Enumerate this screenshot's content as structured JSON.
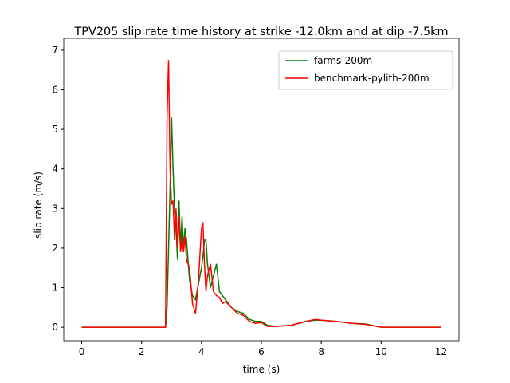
{
  "chart_data": {
    "type": "line",
    "title": "TPV205 slip rate time history at strike -12.0km and at dip -7.5km",
    "x_label": "time (s)",
    "y_label": "slip rate (m/s)",
    "x": [
      0,
      2.8,
      2.85,
      2.9,
      2.95,
      3.0,
      3.05,
      3.1,
      3.15,
      3.2,
      3.25,
      3.3,
      3.35,
      3.4,
      3.45,
      3.5,
      3.6,
      3.7,
      3.8,
      3.9,
      4.0,
      4.05,
      4.1,
      4.15,
      4.2,
      4.3,
      4.4,
      4.5,
      4.6,
      4.7,
      4.8,
      5.0,
      5.2,
      5.4,
      5.6,
      5.8,
      6.0,
      6.2,
      6.5,
      7.0,
      7.5,
      7.8,
      8.0,
      8.5,
      9.0,
      9.5,
      10.0,
      12.0
    ],
    "series": [
      {
        "name": "farms-200m",
        "color": "#008000",
        "values": [
          0,
          0,
          0.5,
          2.0,
          3.5,
          5.3,
          4.0,
          3.0,
          2.5,
          1.7,
          3.2,
          2.0,
          2.8,
          2.0,
          2.5,
          2.2,
          1.2,
          0.8,
          0.7,
          1.1,
          1.5,
          1.8,
          2.2,
          2.2,
          1.6,
          1.0,
          1.3,
          1.6,
          0.9,
          0.8,
          0.7,
          0.5,
          0.4,
          0.35,
          0.2,
          0.15,
          0.15,
          0.05,
          0.02,
          0.05,
          0.15,
          0.18,
          0.18,
          0.15,
          0.1,
          0.08,
          0,
          0
        ]
      },
      {
        "name": "benchmark-pylith-200m",
        "color": "#ff0000",
        "values": [
          0,
          0,
          5.3,
          6.75,
          4.0,
          3.1,
          3.2,
          2.2,
          3.0,
          2.0,
          2.8,
          1.9,
          2.3,
          1.9,
          2.3,
          1.7,
          1.5,
          0.6,
          0.35,
          1.2,
          2.5,
          2.65,
          1.6,
          0.9,
          1.3,
          1.6,
          0.9,
          0.8,
          0.75,
          0.6,
          0.65,
          0.5,
          0.35,
          0.3,
          0.15,
          0.1,
          0.12,
          0.02,
          0.02,
          0.05,
          0.15,
          0.2,
          0.18,
          0.15,
          0.1,
          0.07,
          0,
          0
        ]
      }
    ],
    "xlim": [
      -0.6,
      12.6
    ],
    "ylim": [
      -0.34,
      7.3
    ],
    "xticks": [
      0,
      2,
      4,
      6,
      8,
      10,
      12
    ],
    "yticks": [
      0,
      1,
      2,
      3,
      4,
      5,
      6,
      7
    ],
    "grid": false,
    "legend": "upper right"
  }
}
